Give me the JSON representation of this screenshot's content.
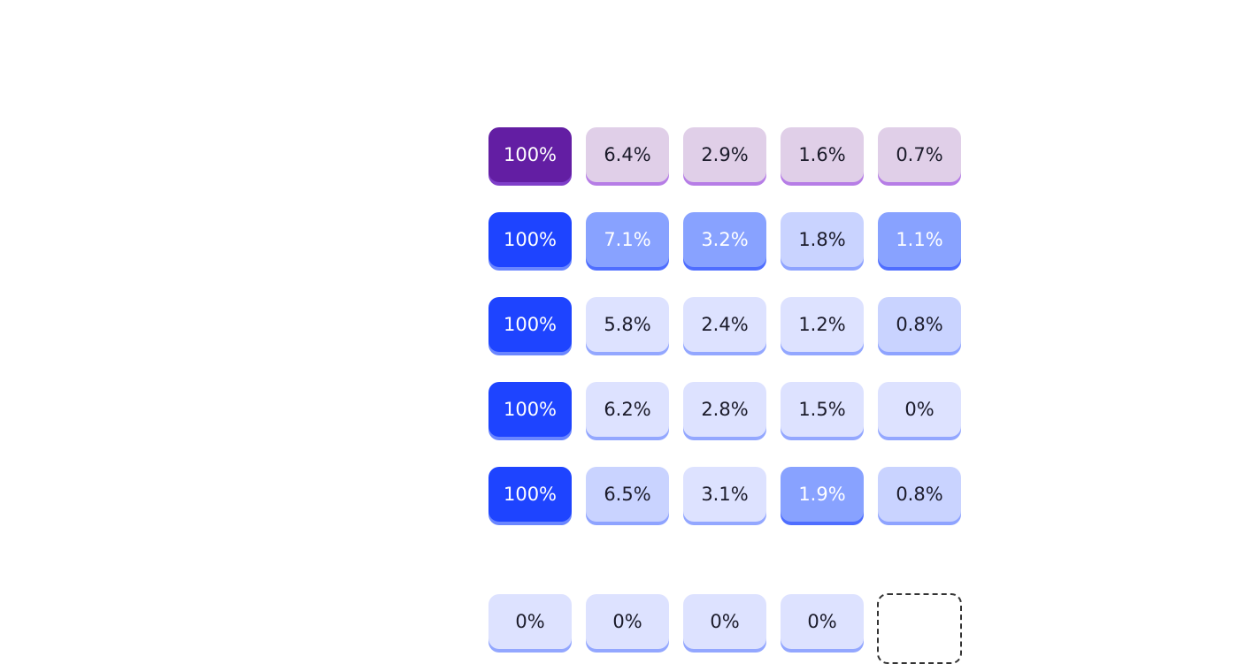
{
  "grid": {
    "rows": [
      [
        "100%",
        "6.4%",
        "2.9%",
        "1.6%",
        "0.7%"
      ],
      [
        "100%",
        "7.1%",
        "3.2%",
        "1.8%",
        "1.1%"
      ],
      [
        "100%",
        "5.8%",
        "2.4%",
        "1.2%",
        "0.8%"
      ],
      [
        "100%",
        "6.2%",
        "2.8%",
        "1.5%",
        "0%"
      ],
      [
        "100%",
        "6.5%",
        "3.1%",
        "1.9%",
        "0.8%"
      ]
    ],
    "footer_row": [
      "0%",
      "0%",
      "0%",
      "0%"
    ]
  }
}
